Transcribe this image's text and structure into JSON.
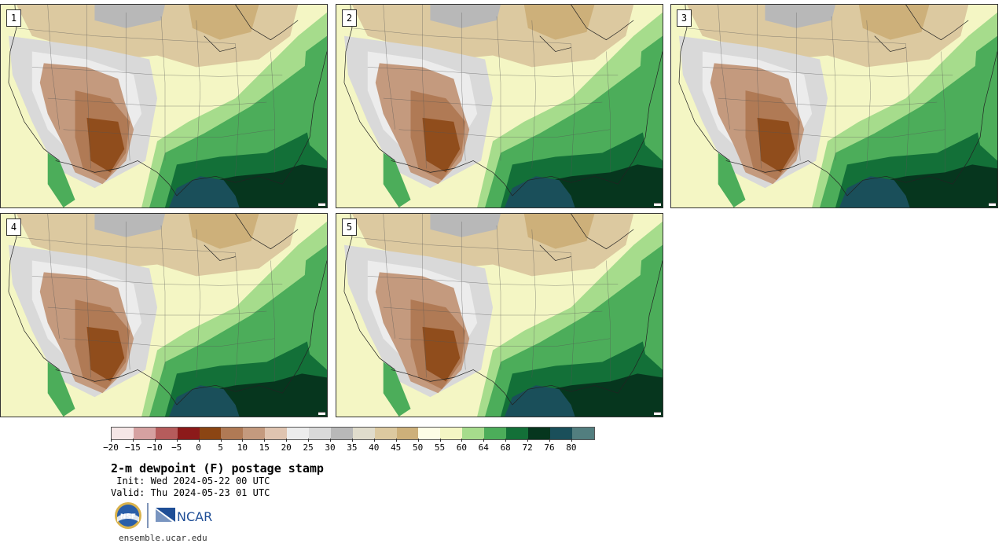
{
  "stamps": [
    {
      "label": "1"
    },
    {
      "label": "2"
    },
    {
      "label": "3"
    },
    {
      "label": "4"
    },
    {
      "label": "5"
    }
  ],
  "legend": {
    "colors": [
      "#f5e6e6",
      "#d5a1a1",
      "#b65c5c",
      "#8c1a1a",
      "#8b4513",
      "#b07a55",
      "#c49a7e",
      "#dfc4b0",
      "#ececec",
      "#d9d9d9",
      "#b8b8b8",
      "#e0dccc",
      "#dcc9a0",
      "#cdb07a",
      "#fdfde6",
      "#f4f6c4",
      "#a6dc8c",
      "#4cad5a",
      "#137038",
      "#06361e",
      "#1a4f5a",
      "#527e7f"
    ],
    "ticks": [
      "−20",
      "−15",
      "−10",
      "−5",
      "0",
      "5",
      "10",
      "15",
      "20",
      "25",
      "30",
      "35",
      "40",
      "45",
      "50",
      "55",
      "60",
      "64",
      "68",
      "72",
      "76",
      "80"
    ]
  },
  "title": "2-m dewpoint (F) postage stamp",
  "init": " Init: Wed 2024-05-22 00 UTC",
  "valid": "Valid: Thu 2024-05-23 01 UTC",
  "logos": {
    "nsf": "NSF",
    "ncar": "NCAR"
  },
  "url": "ensemble.ucar.edu"
}
